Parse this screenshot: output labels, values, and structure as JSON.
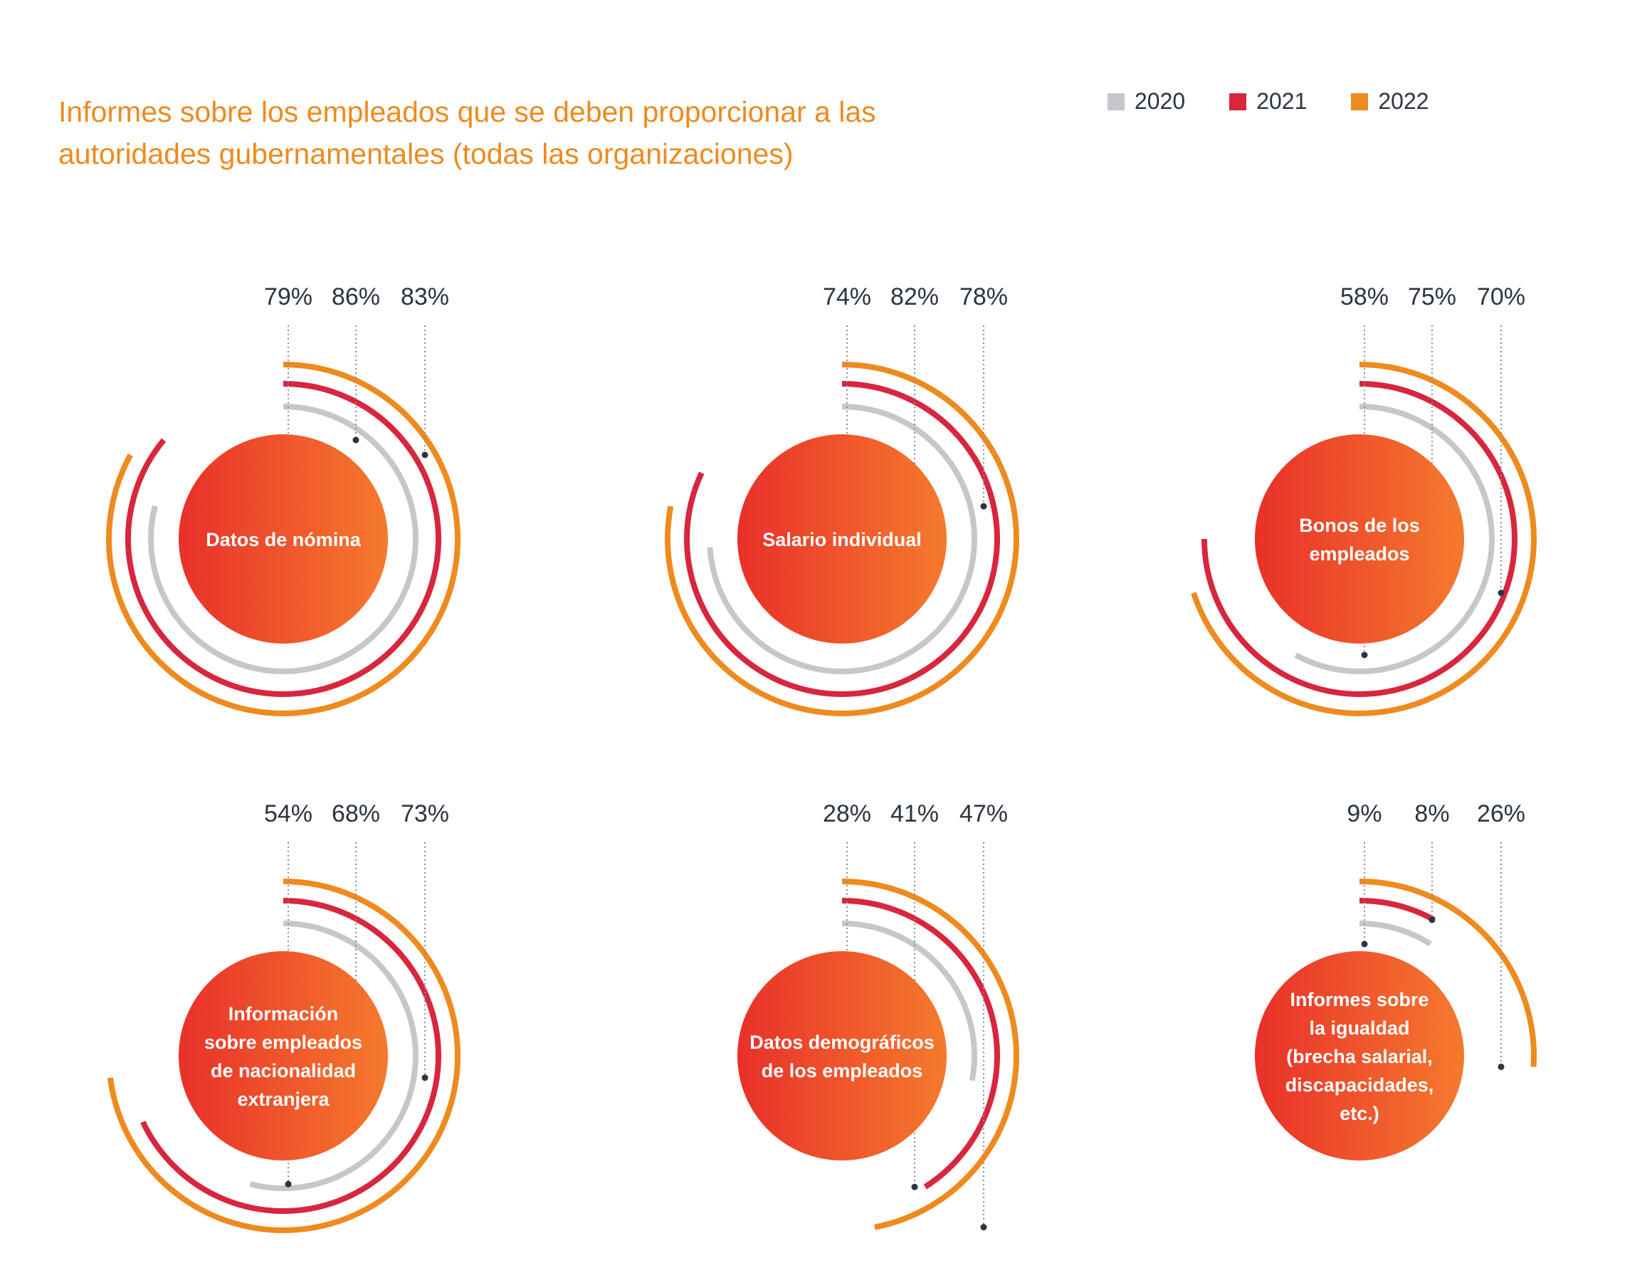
{
  "title_lines": [
    "Informes sobre los empleados que se deben proporcionar a las",
    "autoridades gubernamentales (todas las organizaciones)"
  ],
  "legend": [
    {
      "label": "2020",
      "color": "#c5c7ca"
    },
    {
      "label": "2021",
      "color": "#d7263d"
    },
    {
      "label": "2022",
      "color": "#ee8a1e"
    }
  ],
  "center_gradient": [
    "#e9302a",
    "#f57a2d"
  ],
  "chart_data": {
    "type": "radial-bar",
    "series": [
      {
        "name": "2020",
        "color": "#c5c7ca"
      },
      {
        "name": "2021",
        "color": "#d7263d"
      },
      {
        "name": "2022",
        "color": "#ee8a1e"
      }
    ],
    "charts": [
      {
        "category_lines": [
          "Datos de nómina"
        ],
        "values": [
          79,
          86,
          83
        ],
        "value_labels": [
          "79%",
          "86%",
          "83%"
        ]
      },
      {
        "category_lines": [
          "Salario individual"
        ],
        "values": [
          74,
          82,
          78
        ],
        "value_labels": [
          "74%",
          "82%",
          "78%"
        ]
      },
      {
        "category_lines": [
          "Bonos de los",
          "empleados"
        ],
        "values": [
          58,
          75,
          70
        ],
        "value_labels": [
          "58%",
          "75%",
          "70%"
        ]
      },
      {
        "category_lines": [
          "Información",
          "sobre empleados",
          "de nacionalidad",
          "extranjera"
        ],
        "values": [
          54,
          68,
          73
        ],
        "value_labels": [
          "54%",
          "68%",
          "73%"
        ]
      },
      {
        "category_lines": [
          "Datos demográficos",
          "de los empleados"
        ],
        "values": [
          28,
          41,
          47
        ],
        "value_labels": [
          "28%",
          "41%",
          "47%"
        ]
      },
      {
        "category_lines": [
          "Informes sobre",
          "la igualdad",
          "(brecha salarial,",
          "discapacidades,",
          "etc.)"
        ],
        "values": [
          9,
          8,
          26
        ],
        "value_labels": [
          "9%",
          "8%",
          "26%"
        ]
      }
    ]
  }
}
